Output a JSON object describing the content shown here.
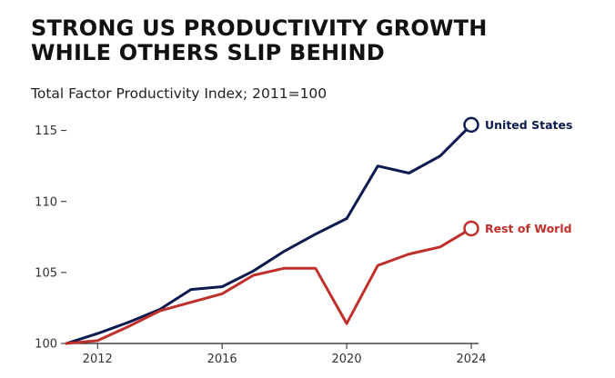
{
  "header": {
    "title_line1": "STRONG US PRODUCTIVITY GROWTH",
    "title_line2": "WHILE OTHERS SLIP BEHIND",
    "subtitle": "Total Factor Productivity Index; 2011=100"
  },
  "colors": {
    "us": "#0b1a4f",
    "row": "#c0302b",
    "axis": "#222222",
    "grid": "#dddddd"
  },
  "chart_data": {
    "type": "line",
    "title": "STRONG US PRODUCTIVITY GROWTH WHILE OTHERS SLIP BEHIND",
    "subtitle": "Total Factor Productivity Index; 2011=100",
    "xlabel": "",
    "ylabel": "",
    "x": [
      2011,
      2012,
      2013,
      2014,
      2015,
      2016,
      2017,
      2018,
      2019,
      2020,
      2021,
      2022,
      2023,
      2024
    ],
    "xlim": [
      2011,
      2024
    ],
    "ylim": [
      100,
      116
    ],
    "xticks": [
      2012,
      2016,
      2020,
      2024
    ],
    "yticks": [
      100,
      105,
      110,
      115
    ],
    "grid": false,
    "series": [
      {
        "name": "United States",
        "color": "#0b1a4f",
        "values": [
          100,
          100.7,
          101.5,
          102.4,
          103.8,
          104.0,
          105.1,
          106.5,
          107.7,
          108.8,
          112.5,
          112.0,
          113.2,
          115.4
        ]
      },
      {
        "name": "Rest of World",
        "color": "#c0302b",
        "values": [
          100,
          100.2,
          101.2,
          102.3,
          102.9,
          103.5,
          104.8,
          105.3,
          105.3,
          101.4,
          105.5,
          106.3,
          106.8,
          108.1
        ]
      }
    ]
  }
}
